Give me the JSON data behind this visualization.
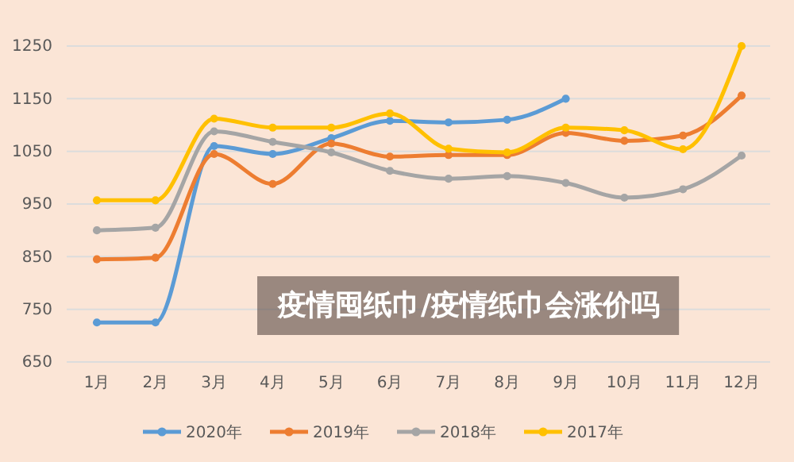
{
  "chart_data": {
    "type": "line",
    "title": "疫情囤纸巾/疫情纸巾会涨价吗",
    "categories": [
      "1月",
      "2月",
      "3月",
      "4月",
      "5月",
      "6月",
      "7月",
      "8月",
      "9月",
      "10月",
      "11月",
      "12月"
    ],
    "series": [
      {
        "name": "2020年",
        "color": "#5b9bd5",
        "values": [
          725,
          725,
          1060,
          1045,
          1075,
          1108,
          1105,
          1110,
          1150,
          null,
          null,
          null
        ]
      },
      {
        "name": "2019年",
        "color": "#ed7d31",
        "values": [
          845,
          848,
          1045,
          988,
          1065,
          1040,
          1043,
          1043,
          1085,
          1070,
          1080,
          1156
        ]
      },
      {
        "name": "2018年",
        "color": "#a5a5a5",
        "values": [
          900,
          905,
          1088,
          1068,
          1048,
          1013,
          998,
          1003,
          990,
          962,
          978,
          1042
        ]
      },
      {
        "name": "2017年",
        "color": "#ffc000",
        "values": [
          957,
          957,
          1112,
          1095,
          1095,
          1122,
          1055,
          1048,
          1095,
          1090,
          1054,
          1250
        ]
      }
    ],
    "ylim": [
      650,
      1250
    ],
    "yticks": [
      650,
      750,
      850,
      950,
      1050,
      1150,
      1250
    ],
    "grid": "y",
    "legend": "bottom",
    "marker": "circle",
    "line_style": "solid"
  }
}
